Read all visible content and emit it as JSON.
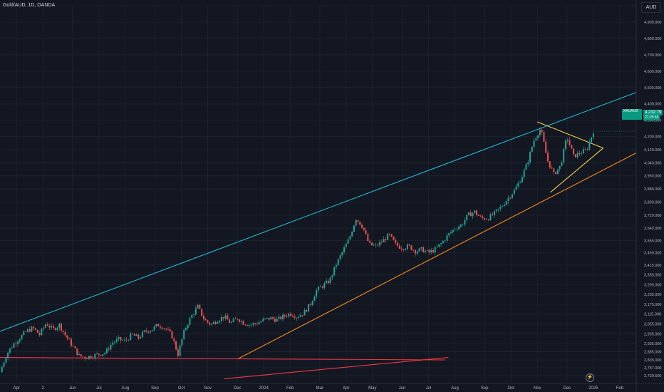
{
  "header": {
    "title": "Gold/AUD, 1D, OANDA",
    "currency_button": "AUD"
  },
  "price_tag": {
    "symbol": "XAUAUD",
    "price": "4,232.79",
    "countdown": "21:25:55"
  },
  "colors": {
    "background": "#131722",
    "up": "#26a69a",
    "down": "#ef5350",
    "channel_line": "#22b8cf",
    "support_line": "#f28a1a",
    "horizontal_line": "#f23645",
    "triangle": "#f7d04a",
    "grid": "#1e222d",
    "axis_text": "#b2b5be"
  },
  "chart_data": {
    "type": "candlestick",
    "title": "Gold/AUD, 1D, OANDA",
    "ylabel": "AUD",
    "ylim": [
      2700,
      5000
    ],
    "y_ticks": [
      "5,000.00",
      "4,900.000",
      "4,800.000",
      "4,700.000",
      "4,600.000",
      "4,500.000",
      "4,400.000",
      "4,300.000",
      "4,200.000",
      "4,120.000",
      "4,040.000",
      "3,960.000",
      "3,880.000",
      "3,800.000",
      "3,720.000",
      "3,640.000",
      "3,565.000",
      "3,490.000",
      "3,415.000",
      "3,355.000",
      "3,295.000",
      "3,235.000",
      "3,175.000",
      "3,115.000",
      "3,055.000",
      "2,995.000",
      "2,935.000",
      "2,885.000",
      "2,835.000",
      "2,787.000",
      "2,739.500"
    ],
    "x_ticks": [
      "Apr",
      "2",
      "Jun",
      "Jul",
      "Aug",
      "Sep",
      "Oct",
      "Nov",
      "Dec",
      "2024",
      "Feb",
      "Mar",
      "Apr",
      "May",
      "Jun",
      "Jul",
      "Aug",
      "Sep",
      "Oct",
      "Nov",
      "Dec",
      "2025",
      "Feb"
    ],
    "x_tick_values": [
      2023.25,
      2023.33,
      2023.42,
      2023.5,
      2023.58,
      2023.67,
      2023.75,
      2023.83,
      2023.92,
      2024.0,
      2024.08,
      2024.17,
      2024.25,
      2024.33,
      2024.42,
      2024.5,
      2024.58,
      2024.67,
      2024.75,
      2024.83,
      2024.92,
      2025.0,
      2025.08
    ],
    "x_range": [
      2023.2,
      2025.13
    ],
    "price_path": [
      [
        2023.2,
        2760
      ],
      [
        2023.22,
        2870
      ],
      [
        2023.24,
        2930
      ],
      [
        2023.26,
        2970
      ],
      [
        2023.28,
        3010
      ],
      [
        2023.3,
        3030
      ],
      [
        2023.32,
        2990
      ],
      [
        2023.34,
        3060
      ],
      [
        2023.36,
        3020
      ],
      [
        2023.38,
        3050
      ],
      [
        2023.4,
        2980
      ],
      [
        2023.42,
        2920
      ],
      [
        2023.44,
        2860
      ],
      [
        2023.46,
        2850
      ],
      [
        2023.48,
        2860
      ],
      [
        2023.5,
        2870
      ],
      [
        2023.52,
        2880
      ],
      [
        2023.54,
        2940
      ],
      [
        2023.56,
        2960
      ],
      [
        2023.58,
        2950
      ],
      [
        2023.6,
        2990
      ],
      [
        2023.62,
        2970
      ],
      [
        2023.64,
        3010
      ],
      [
        2023.66,
        3020
      ],
      [
        2023.68,
        3050
      ],
      [
        2023.7,
        3030
      ],
      [
        2023.72,
        2990
      ],
      [
        2023.74,
        2870
      ],
      [
        2023.76,
        3020
      ],
      [
        2023.78,
        3100
      ],
      [
        2023.8,
        3160
      ],
      [
        2023.82,
        3080
      ],
      [
        2023.84,
        3050
      ],
      [
        2023.86,
        3080
      ],
      [
        2023.88,
        3100
      ],
      [
        2023.9,
        3060
      ],
      [
        2023.92,
        3090
      ],
      [
        2023.94,
        3060
      ],
      [
        2023.96,
        3050
      ],
      [
        2023.98,
        3060
      ],
      [
        2024.0,
        3080
      ],
      [
        2024.02,
        3090
      ],
      [
        2024.04,
        3080
      ],
      [
        2024.06,
        3100
      ],
      [
        2024.08,
        3120
      ],
      [
        2024.1,
        3100
      ],
      [
        2024.12,
        3120
      ],
      [
        2024.14,
        3170
      ],
      [
        2024.16,
        3260
      ],
      [
        2024.18,
        3290
      ],
      [
        2024.2,
        3320
      ],
      [
        2024.22,
        3420
      ],
      [
        2024.24,
        3500
      ],
      [
        2024.26,
        3580
      ],
      [
        2024.28,
        3700
      ],
      [
        2024.3,
        3650
      ],
      [
        2024.32,
        3540
      ],
      [
        2024.34,
        3530
      ],
      [
        2024.36,
        3560
      ],
      [
        2024.38,
        3600
      ],
      [
        2024.4,
        3540
      ],
      [
        2024.42,
        3520
      ],
      [
        2024.44,
        3530
      ],
      [
        2024.46,
        3500
      ],
      [
        2024.48,
        3510
      ],
      [
        2024.5,
        3490
      ],
      [
        2024.52,
        3510
      ],
      [
        2024.54,
        3550
      ],
      [
        2024.56,
        3600
      ],
      [
        2024.58,
        3640
      ],
      [
        2024.6,
        3660
      ],
      [
        2024.62,
        3720
      ],
      [
        2024.64,
        3740
      ],
      [
        2024.66,
        3700
      ],
      [
        2024.68,
        3700
      ],
      [
        2024.7,
        3730
      ],
      [
        2024.72,
        3770
      ],
      [
        2024.74,
        3820
      ],
      [
        2024.76,
        3870
      ],
      [
        2024.78,
        3940
      ],
      [
        2024.8,
        4040
      ],
      [
        2024.82,
        4180
      ],
      [
        2024.84,
        4250
      ],
      [
        2024.85,
        4160
      ],
      [
        2024.86,
        4060
      ],
      [
        2024.88,
        3970
      ],
      [
        2024.9,
        4020
      ],
      [
        2024.92,
        4200
      ],
      [
        2024.94,
        4080
      ],
      [
        2024.96,
        4100
      ],
      [
        2024.98,
        4120
      ],
      [
        2025.0,
        4233
      ]
    ],
    "lines": [
      {
        "name": "channel-line",
        "color": "#22b8cf",
        "from": [
          2023.2,
          3010
        ],
        "to": [
          2025.13,
          4470
        ]
      },
      {
        "name": "support-line",
        "color": "#f28a1a",
        "from": [
          2023.92,
          2840
        ],
        "to": [
          2025.13,
          4100
        ]
      },
      {
        "name": "horizontal-line",
        "color": "#f23645",
        "from": [
          2023.2,
          2850
        ],
        "to": [
          2024.55,
          2835
        ]
      },
      {
        "name": "rising-red-line",
        "color": "#f23645",
        "from": [
          2023.88,
          2720
        ],
        "to": [
          2024.56,
          2850
        ]
      },
      {
        "name": "triangle-upper",
        "color": "#f7d04a",
        "from": [
          2024.83,
          4290
        ],
        "to": [
          2025.03,
          4130
        ]
      },
      {
        "name": "triangle-lower",
        "color": "#f7d04a",
        "from": [
          2024.87,
          3860
        ],
        "to": [
          2025.03,
          4130
        ]
      }
    ]
  }
}
